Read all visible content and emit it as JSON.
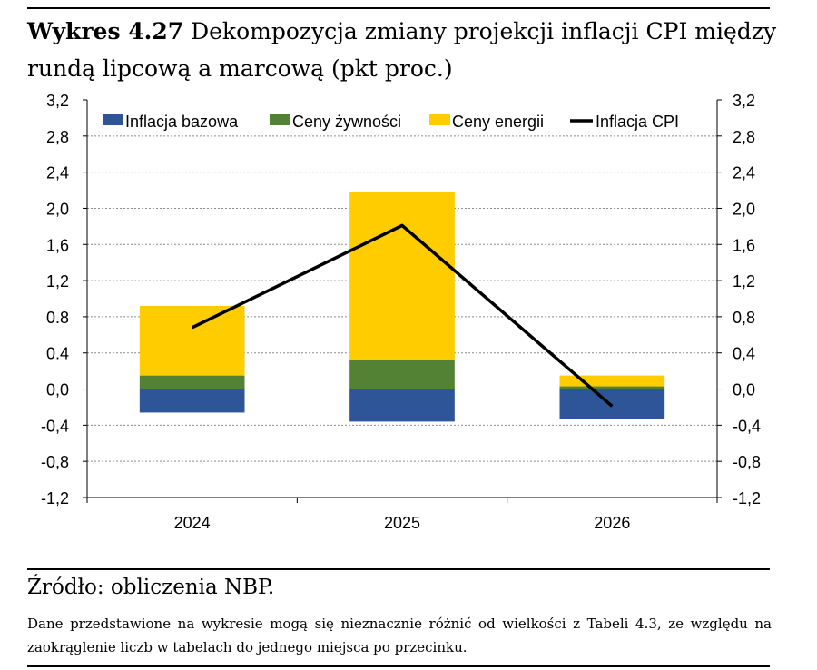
{
  "figure": {
    "label": "Wykres 4.27",
    "title": "Dekompozycja zmiany projekcji inflacji CPI między rundą lipcową a marcową (pkt proc.)",
    "source": "Źródło: obliczenia NBP.",
    "note": "Dane przedstawione na wykresie mogą się nieznacznie różnić od wielkości z Tabeli 4.3, ze względu na zaokrąglenie liczb w tabelach do jednego miejsca po przecinku."
  },
  "chart_data": {
    "type": "bar",
    "stacked": true,
    "categories": [
      "2024",
      "2025",
      "2026"
    ],
    "series": [
      {
        "name": "Inflacja bazowa",
        "kind": "bar",
        "color": "#2E5597",
        "values": [
          -0.26,
          -0.36,
          -0.33
        ]
      },
      {
        "name": "Ceny żywności",
        "kind": "bar",
        "color": "#548235",
        "values": [
          0.15,
          0.32,
          0.03
        ]
      },
      {
        "name": "Ceny energii",
        "kind": "bar",
        "color": "#FFCC00",
        "values": [
          0.77,
          1.86,
          0.12
        ]
      },
      {
        "name": "Inflacja CPI",
        "kind": "line",
        "color": "#000000",
        "values": [
          0.68,
          1.81,
          -0.19
        ]
      }
    ],
    "ylim": [
      -1.2,
      3.2
    ],
    "yticks_left": [
      "3,2",
      "2,8",
      "2,4",
      "2,0",
      "1,6",
      "1,2",
      "0.8",
      "0.4",
      "0,0",
      "-0,4",
      "-0,8",
      "-1,2"
    ],
    "yticks_right": [
      "3,2",
      "2,8",
      "2,4",
      "2,0",
      "1,6",
      "1,2",
      "0,8",
      "0,4",
      "0,0",
      "-0,4",
      "-0,8",
      "-1,2"
    ],
    "grid": true,
    "legend": "top"
  }
}
